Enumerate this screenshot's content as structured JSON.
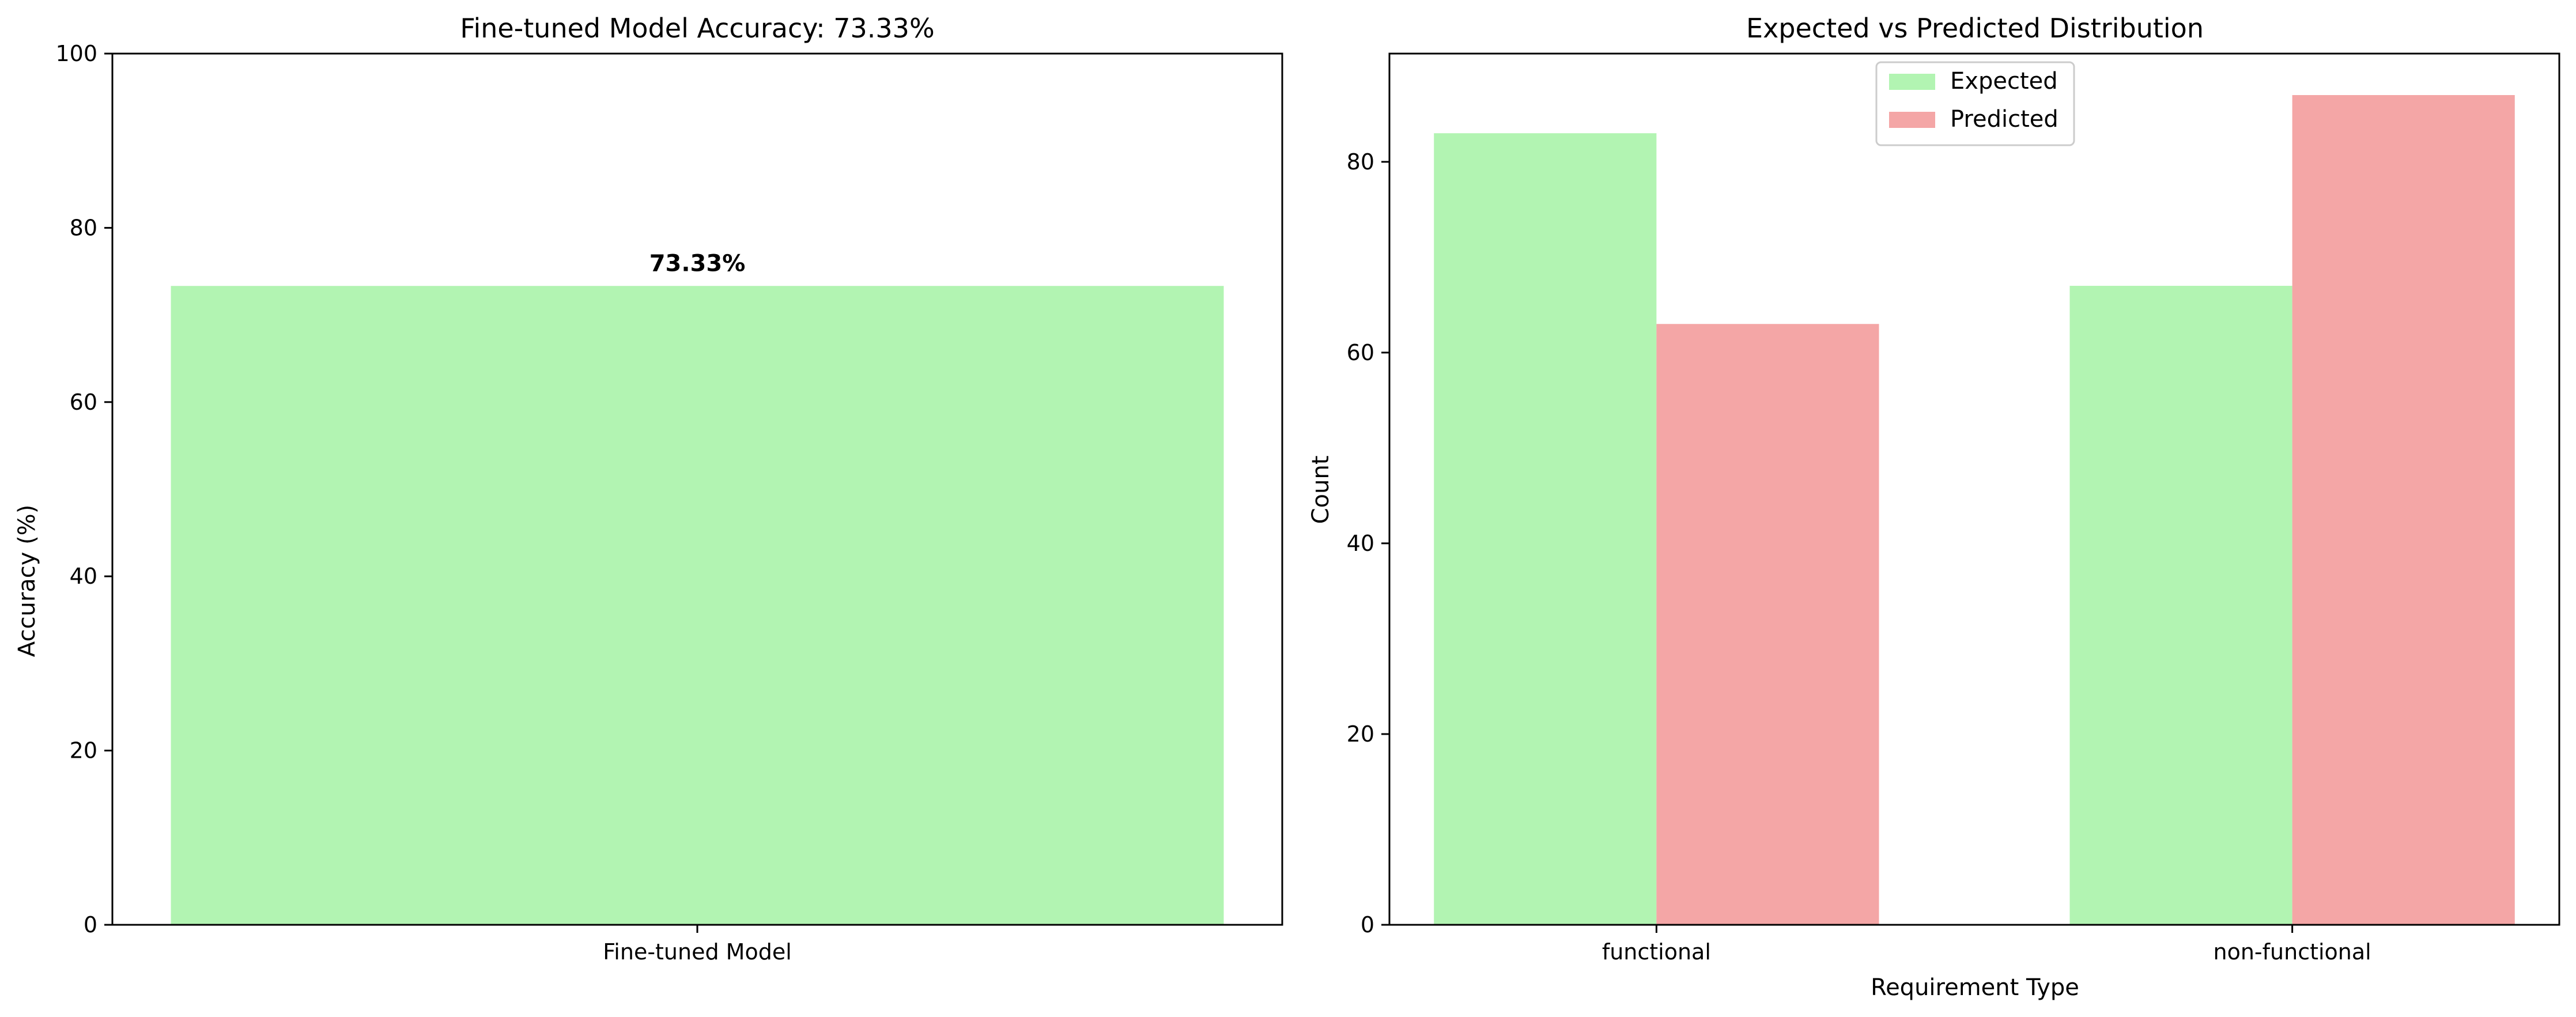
{
  "chart_data": [
    {
      "type": "bar",
      "title": "Fine-tuned Model Accuracy: 73.33%",
      "categories": [
        "Fine-tuned Model"
      ],
      "values": [
        73.33
      ],
      "data_labels": [
        "73.33%"
      ],
      "xlabel": "",
      "ylabel": "Accuracy (%)",
      "ylim": [
        0,
        100
      ],
      "yticks": [
        0,
        20,
        40,
        60,
        80,
        100
      ],
      "grid": false,
      "color": "#b2f4b2"
    },
    {
      "type": "bar",
      "title": "Expected vs Predicted Distribution",
      "categories": [
        "functional",
        "non-functional"
      ],
      "series": [
        {
          "name": "Expected",
          "values": [
            83,
            67
          ],
          "color": "#b2f4b2"
        },
        {
          "name": "Predicted",
          "values": [
            63,
            87
          ],
          "color": "#f4a6a6"
        }
      ],
      "xlabel": "Requirement Type",
      "ylabel": "Count",
      "ylim": [
        0,
        91.35
      ],
      "yticks": [
        0,
        20,
        40,
        60,
        80
      ],
      "grid": false,
      "legend": "upper-center"
    }
  ]
}
